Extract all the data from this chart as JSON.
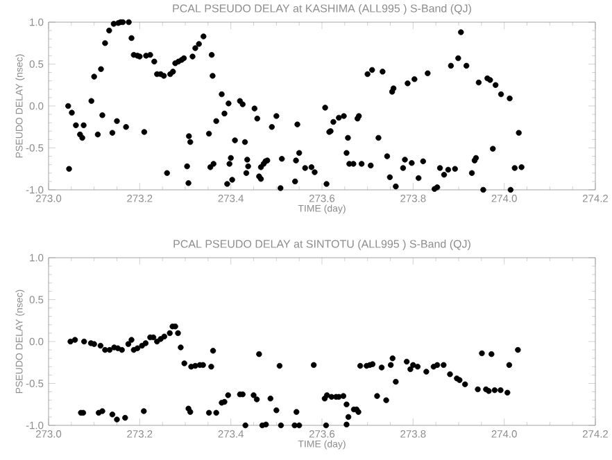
{
  "chart_data": [
    {
      "type": "scatter",
      "title": "PCAL PSEUDO DELAY at KASHIMA (ALL995 ) S-Band (QJ)",
      "xlabel": "TIME (day)",
      "ylabel": "PSEUDO DELAY (nsec)",
      "color": "#000000",
      "marker": "circle",
      "xlim": [
        273.0,
        274.2
      ],
      "ylim": [
        -1.0,
        1.0
      ],
      "xticks": [
        {
          "value": 273.0,
          "label": "273.0"
        },
        {
          "value": 273.2,
          "label": "273.2"
        },
        {
          "value": 273.4,
          "label": "273.4"
        },
        {
          "value": 273.6,
          "label": "273.6"
        },
        {
          "value": 273.8,
          "label": "273.8"
        },
        {
          "value": 274.0,
          "label": "274.0"
        },
        {
          "value": 274.2,
          "label": "274.2"
        }
      ],
      "yticks": [
        {
          "value": -1.0,
          "label": "-1.0"
        },
        {
          "value": -0.5,
          "label": "-0.5"
        },
        {
          "value": 0.0,
          "label": "0.0"
        },
        {
          "value": 0.5,
          "label": "0.5"
        },
        {
          "value": 1.0,
          "label": "1.0"
        }
      ],
      "x": [
        273.043,
        273.045,
        273.051,
        273.06,
        273.069,
        273.074,
        273.077,
        273.094,
        273.1,
        273.108,
        273.115,
        273.118,
        273.124,
        273.133,
        273.14,
        273.143,
        273.15,
        273.153,
        273.158,
        273.163,
        273.17,
        273.176,
        273.182,
        273.187,
        273.195,
        273.2,
        273.21,
        273.214,
        273.223,
        273.232,
        273.238,
        273.246,
        273.253,
        273.26,
        273.267,
        273.273,
        273.278,
        273.285,
        273.292,
        273.297,
        273.304,
        273.307,
        273.308,
        273.311,
        273.316,
        273.322,
        273.33,
        273.34,
        273.352,
        273.355,
        273.358,
        273.36,
        273.362,
        273.368,
        273.38,
        273.386,
        273.392,
        273.395,
        273.397,
        273.4,
        273.403,
        273.409,
        273.42,
        273.426,
        273.431,
        273.434,
        273.436,
        273.438,
        273.452,
        273.458,
        273.462,
        273.466,
        273.466,
        273.472,
        273.476,
        273.48,
        273.49,
        273.5,
        273.509,
        273.512,
        273.541,
        273.543,
        273.546,
        273.55,
        273.563,
        273.577,
        273.584,
        273.607,
        273.61,
        273.616,
        273.619,
        273.625,
        273.637,
        273.648,
        273.654,
        273.657,
        273.66,
        273.669,
        273.678,
        273.681,
        273.687,
        273.7,
        273.707,
        273.71,
        273.724,
        273.733,
        273.743,
        273.749,
        273.754,
        273.757,
        273.762,
        273.778,
        273.782,
        273.788,
        273.797,
        273.803,
        273.812,
        273.822,
        273.832,
        273.847,
        273.853,
        273.859,
        273.868,
        273.877,
        273.883,
        273.892,
        273.899,
        273.905,
        273.917,
        273.929,
        273.935,
        273.938,
        273.944,
        273.954,
        273.963,
        273.969,
        273.975,
        273.981,
        273.993,
        274.012,
        274.014,
        274.023,
        274.032,
        274.038
      ],
      "values": [
        0.0,
        -0.75,
        -0.08,
        -0.23,
        -0.34,
        -0.38,
        -0.23,
        0.06,
        0.35,
        -0.34,
        0.44,
        -0.11,
        0.75,
        0.9,
        -0.32,
        0.98,
        -0.18,
        0.99,
        1.0,
        1.0,
        -0.25,
        1.0,
        0.81,
        0.61,
        0.6,
        0.59,
        -0.31,
        0.6,
        0.61,
        0.53,
        0.38,
        0.38,
        0.36,
        -0.8,
        0.38,
        0.41,
        0.51,
        0.53,
        0.55,
        0.57,
        -0.72,
        -0.92,
        -0.36,
        -0.43,
        0.59,
        0.69,
        0.74,
        0.83,
        -0.33,
        -0.73,
        0.61,
        0.36,
        -0.69,
        -0.18,
        0.14,
        -0.09,
        -0.93,
        0.03,
        -0.69,
        -0.62,
        -0.88,
        -0.41,
        0.06,
        0.02,
        -0.43,
        -0.8,
        -0.64,
        -0.72,
        -0.03,
        -0.15,
        -0.84,
        -0.87,
        -0.73,
        -0.69,
        -0.66,
        -0.65,
        -0.25,
        -0.12,
        -0.98,
        -0.63,
        -0.9,
        -0.65,
        -0.22,
        -0.56,
        -0.74,
        -0.73,
        -0.79,
        -0.02,
        -0.93,
        -0.31,
        -0.3,
        -0.19,
        -0.14,
        -0.12,
        -0.56,
        -0.38,
        -0.69,
        -0.69,
        -0.15,
        -0.12,
        -0.69,
        0.38,
        -0.71,
        0.43,
        -0.38,
        0.41,
        -0.6,
        -0.85,
        0.17,
        0.21,
        -0.96,
        -0.74,
        -0.64,
        0.27,
        -0.68,
        0.32,
        -0.86,
        -0.66,
        0.39,
        -0.99,
        -0.97,
        -0.74,
        -0.82,
        -0.76,
        0.48,
        -0.75,
        0.57,
        0.88,
        0.48,
        -0.8,
        -0.65,
        -0.62,
        0.28,
        -1.0,
        0.33,
        0.31,
        -0.51,
        0.25,
        0.14,
        0.09,
        -1.0,
        -0.74,
        -0.32,
        -0.73
      ]
    },
    {
      "type": "scatter",
      "title": "PCAL PSEUDO DELAY at SINTOTU (ALL995 ) S-Band (QJ)",
      "xlabel": "TIME (day)",
      "ylabel": "PSEUDO DELAY (nsec)",
      "color": "#000000",
      "marker": "circle",
      "xlim": [
        273.0,
        274.2
      ],
      "ylim": [
        -1.0,
        1.0
      ],
      "xticks": [
        {
          "value": 273.0,
          "label": "273.0"
        },
        {
          "value": 273.2,
          "label": "273.2"
        },
        {
          "value": 273.4,
          "label": "273.4"
        },
        {
          "value": 273.6,
          "label": "273.6"
        },
        {
          "value": 273.8,
          "label": "273.8"
        },
        {
          "value": 274.0,
          "label": "274.0"
        },
        {
          "value": 274.2,
          "label": "274.2"
        }
      ],
      "yticks": [
        {
          "value": -1.0,
          "label": "-1.0"
        },
        {
          "value": -0.5,
          "label": "-0.5"
        },
        {
          "value": 0.0,
          "label": "0.0"
        },
        {
          "value": 0.5,
          "label": "0.5"
        },
        {
          "value": 1.0,
          "label": "1.0"
        }
      ],
      "x": [
        273.048,
        273.058,
        273.078,
        273.093,
        273.1,
        273.114,
        273.124,
        273.134,
        273.144,
        273.152,
        273.161,
        273.175,
        273.182,
        273.187,
        273.195,
        273.205,
        273.213,
        273.223,
        273.23,
        273.238,
        273.246,
        273.254,
        273.266,
        273.272,
        273.278,
        273.284,
        273.29,
        273.298,
        273.313,
        273.322,
        273.332,
        273.339,
        273.357,
        273.361,
        273.462,
        273.507,
        273.582,
        273.071,
        273.076,
        273.11,
        273.118,
        273.14,
        273.15,
        273.168,
        273.209,
        273.307,
        273.311,
        273.352,
        273.368,
        273.38,
        273.386,
        273.394,
        273.42,
        273.426,
        273.432,
        273.45,
        273.457,
        273.469,
        273.477,
        273.487,
        273.5,
        273.51,
        273.54,
        273.544,
        273.55,
        273.606,
        273.609,
        273.611,
        273.621,
        273.631,
        273.637,
        273.647,
        273.654,
        273.654,
        273.658,
        273.67,
        273.676,
        273.68,
        273.684,
        273.698,
        273.705,
        273.711,
        273.721,
        273.731,
        273.741,
        273.751,
        273.755,
        273.762,
        273.786,
        273.794,
        273.8,
        273.81,
        273.829,
        273.845,
        273.853,
        273.867,
        273.881,
        273.896,
        273.902,
        273.914,
        273.942,
        273.951,
        273.96,
        273.966,
        273.972,
        273.979,
        273.992,
        274.007,
        274.011,
        274.03
      ],
      "values": [
        0.0,
        0.02,
        0.0,
        -0.02,
        -0.03,
        -0.05,
        -0.1,
        -0.1,
        -0.07,
        -0.08,
        -0.1,
        -0.03,
        0.02,
        -0.1,
        -0.08,
        -0.05,
        -0.02,
        0.05,
        0.05,
        0.0,
        0.03,
        0.06,
        0.1,
        0.18,
        0.18,
        0.1,
        -0.07,
        -0.26,
        -0.3,
        -0.29,
        -0.28,
        -0.28,
        -0.3,
        -0.11,
        -0.15,
        -0.29,
        -0.28,
        -0.85,
        -0.85,
        -0.85,
        -0.83,
        -0.87,
        -0.93,
        -0.91,
        -0.83,
        -0.8,
        -0.84,
        -0.85,
        -0.85,
        -0.73,
        -0.72,
        -0.64,
        -0.63,
        -0.63,
        -1.0,
        -0.64,
        -0.69,
        -1.0,
        -0.99,
        -0.68,
        -0.82,
        -1.0,
        -1.0,
        -0.84,
        -1.0,
        -0.68,
        -1.0,
        -0.64,
        -0.66,
        -0.66,
        -0.66,
        -0.65,
        -0.75,
        -0.99,
        -0.9,
        -0.81,
        -0.81,
        -0.84,
        -0.29,
        -0.29,
        -0.28,
        -0.27,
        -0.65,
        -0.31,
        -0.7,
        -0.28,
        -0.2,
        -0.48,
        -0.24,
        -0.33,
        -0.28,
        -0.3,
        -0.36,
        -0.3,
        -0.28,
        -0.28,
        -0.39,
        -0.44,
        -0.46,
        -0.51,
        -0.57,
        -0.14,
        -0.57,
        -0.59,
        -0.15,
        -0.58,
        -0.58,
        -0.61,
        -0.28,
        -0.1
      ]
    }
  ]
}
